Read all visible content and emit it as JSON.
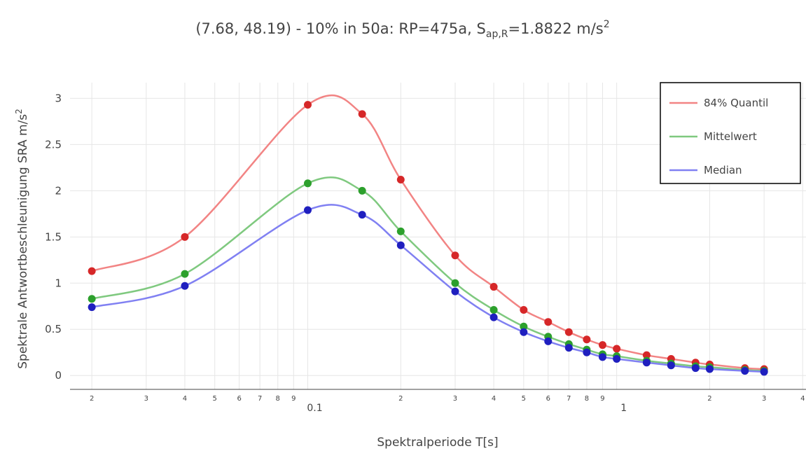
{
  "chart_data": {
    "type": "line",
    "title_main": "(7.68, 48.19) - 10% in 50a: RP=475a, S",
    "title_sub": "ap,R",
    "title_value": "=1.8822 m/s",
    "title_sup": "2",
    "xlabel": "Spektralperiode T[s]",
    "ylabel_main": "Spektrale Antwortbeschleunigung SRA m/s",
    "ylabel_sup": "2",
    "x_scale": "log",
    "xlim": [
      0.017,
      4.1
    ],
    "ylim": [
      -0.15,
      3.17
    ],
    "yticks": [
      0,
      0.5,
      1,
      1.5,
      2,
      2.5,
      3
    ],
    "ytick_labels": [
      "0",
      "0.5",
      "1",
      "1.5",
      "2",
      "2.5",
      "3"
    ],
    "xticks_minor": [
      {
        "value": 0.02,
        "label": "2"
      },
      {
        "value": 0.03,
        "label": "3"
      },
      {
        "value": 0.04,
        "label": "4"
      },
      {
        "value": 0.05,
        "label": "5"
      },
      {
        "value": 0.06,
        "label": "6"
      },
      {
        "value": 0.07,
        "label": "7"
      },
      {
        "value": 0.08,
        "label": "8"
      },
      {
        "value": 0.09,
        "label": "9"
      },
      {
        "value": 0.2,
        "label": "2"
      },
      {
        "value": 0.3,
        "label": "3"
      },
      {
        "value": 0.4,
        "label": "4"
      },
      {
        "value": 0.5,
        "label": "5"
      },
      {
        "value": 0.6,
        "label": "6"
      },
      {
        "value": 0.7,
        "label": "7"
      },
      {
        "value": 0.8,
        "label": "8"
      },
      {
        "value": 0.9,
        "label": "9"
      },
      {
        "value": 2,
        "label": "2"
      },
      {
        "value": 3,
        "label": "3"
      },
      {
        "value": 4,
        "label": "4"
      }
    ],
    "xticks_major": [
      {
        "value": 0.1,
        "label": "0.1"
      },
      {
        "value": 1,
        "label": "1"
      }
    ],
    "grid": true,
    "legend_position": "top-right",
    "x": [
      0.02,
      0.04,
      0.1,
      0.15,
      0.2,
      0.3,
      0.4,
      0.5,
      0.6,
      0.7,
      0.8,
      0.9,
      1.0,
      1.25,
      1.5,
      1.8,
      2.0,
      2.6,
      3.0
    ],
    "series": [
      {
        "name": "84% Quantil",
        "color": "#f28484",
        "marker_color": "#d62728",
        "values": [
          1.13,
          1.5,
          2.93,
          2.83,
          2.12,
          1.3,
          0.96,
          0.71,
          0.58,
          0.47,
          0.39,
          0.33,
          0.29,
          0.22,
          0.18,
          0.14,
          0.12,
          0.08,
          0.07
        ]
      },
      {
        "name": "Mittelwert",
        "color": "#7fc97f",
        "marker_color": "#2ca02c",
        "values": [
          0.83,
          1.1,
          2.08,
          2.0,
          1.56,
          1.0,
          0.71,
          0.53,
          0.42,
          0.34,
          0.28,
          0.23,
          0.21,
          0.16,
          0.13,
          0.1,
          0.09,
          0.06,
          0.05
        ]
      },
      {
        "name": "Median",
        "color": "#8080f2",
        "marker_color": "#1f1fbf",
        "values": [
          0.74,
          0.97,
          1.79,
          1.74,
          1.41,
          0.91,
          0.63,
          0.47,
          0.37,
          0.3,
          0.25,
          0.2,
          0.18,
          0.14,
          0.11,
          0.08,
          0.07,
          0.05,
          0.04
        ]
      }
    ]
  }
}
